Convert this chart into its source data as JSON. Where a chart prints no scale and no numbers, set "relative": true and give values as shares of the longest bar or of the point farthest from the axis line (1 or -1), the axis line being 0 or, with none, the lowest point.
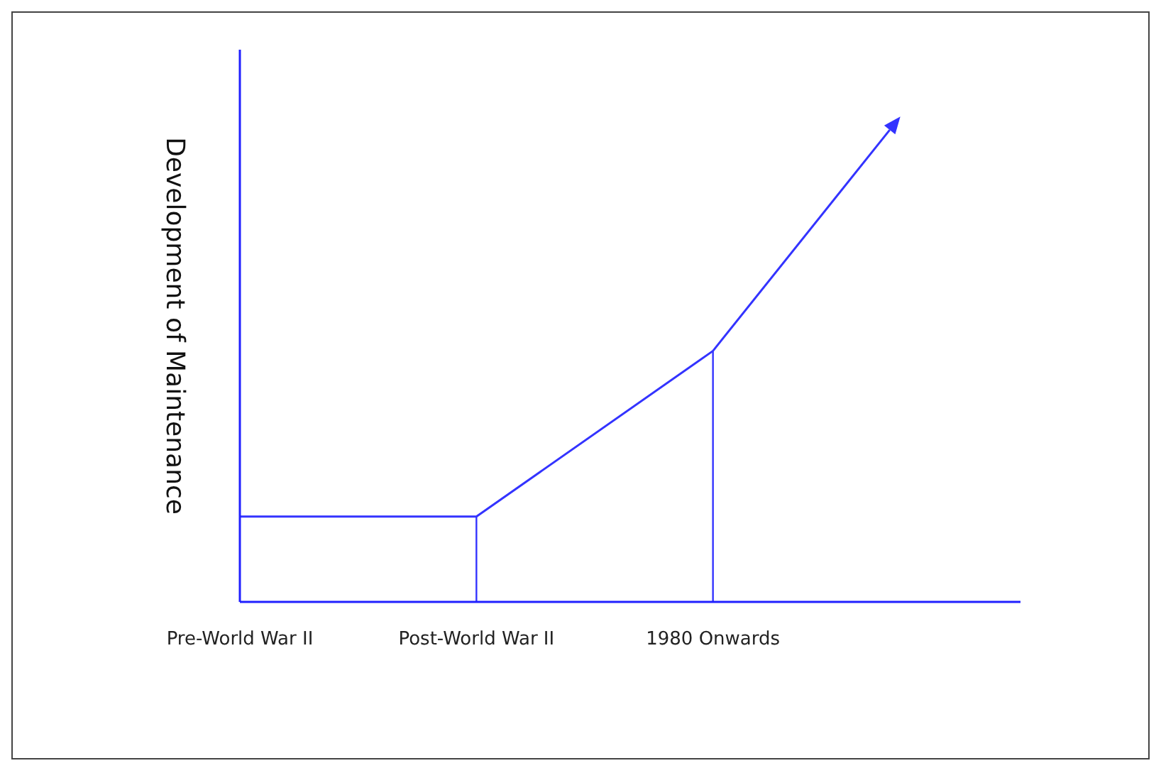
{
  "chart_data": {
    "type": "line",
    "relative": true,
    "ylabel": "Development of Maintenance",
    "categories": [
      "Pre-World War II",
      "Post-World War II",
      "1980 Onwards"
    ],
    "series": [
      {
        "color": "#3333ff",
        "values": [
          0.34,
          0.34,
          1
        ]
      }
    ],
    "ref_lines": [
      {
        "axis": "x",
        "value": "Post-World War II",
        "color": "#3333ff"
      },
      {
        "axis": "x",
        "value": "1980 Onwards",
        "color": "#3333ff"
      }
    ],
    "grid": false,
    "marker": "none",
    "line_style": "solid"
  }
}
